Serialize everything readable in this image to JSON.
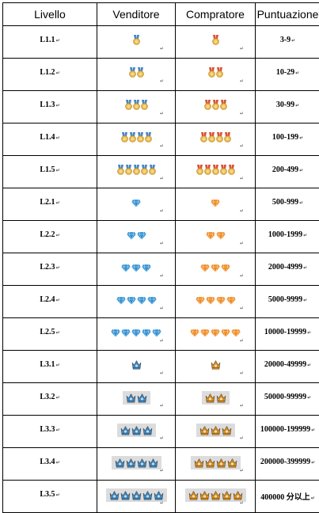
{
  "headers": [
    "Livello",
    "Venditore",
    "Compratore",
    "Puntuazione"
  ],
  "rows": [
    {
      "level": "L1.1",
      "points": "3-9",
      "icon": "medal",
      "count": 1
    },
    {
      "level": "L1.2",
      "points": "10-29",
      "icon": "medal",
      "count": 2
    },
    {
      "level": "L1.3",
      "points": "30-99",
      "icon": "medal",
      "count": 3
    },
    {
      "level": "L1.4",
      "points": "100-199",
      "icon": "medal",
      "count": 4
    },
    {
      "level": "L1.5",
      "points": "200-499",
      "icon": "medal",
      "count": 5
    },
    {
      "level": "L2.1",
      "points": "500-999",
      "icon": "diamond",
      "count": 1
    },
    {
      "level": "L2.2",
      "points": "1000-1999",
      "icon": "diamond",
      "count": 2
    },
    {
      "level": "L2.3",
      "points": "2000-4999",
      "icon": "diamond",
      "count": 3
    },
    {
      "level": "L2.4",
      "points": "5000-9999",
      "icon": "diamond",
      "count": 4
    },
    {
      "level": "L2.5",
      "points": "10000-19999",
      "icon": "diamond",
      "count": 5
    },
    {
      "level": "L3.1",
      "points": "20000-49999",
      "icon": "crown",
      "count": 1
    },
    {
      "level": "L3.2",
      "points": "50000-99999",
      "icon": "crown",
      "count": 2
    },
    {
      "level": "L3.3",
      "points": "100000-199999",
      "icon": "crown",
      "count": 3
    },
    {
      "level": "L3.4",
      "points": "200000-399999",
      "icon": "crown",
      "count": 4
    },
    {
      "level": "L3.5",
      "points": "400000 分以上",
      "icon": "crown",
      "count": 5
    }
  ],
  "cell_mark": "↵",
  "colors": {
    "seller_medal_ribbon": "#4a86c5",
    "buyer_medal_ribbon": "#d9533a",
    "medal_gold": "#e8b64a",
    "seller_diamond": "#2f8fd1",
    "buyer_diamond": "#ef8a1f",
    "seller_crown": "#3b86c0",
    "buyer_crown": "#d98a17",
    "crown_backdrop": "#dcdcdc"
  }
}
